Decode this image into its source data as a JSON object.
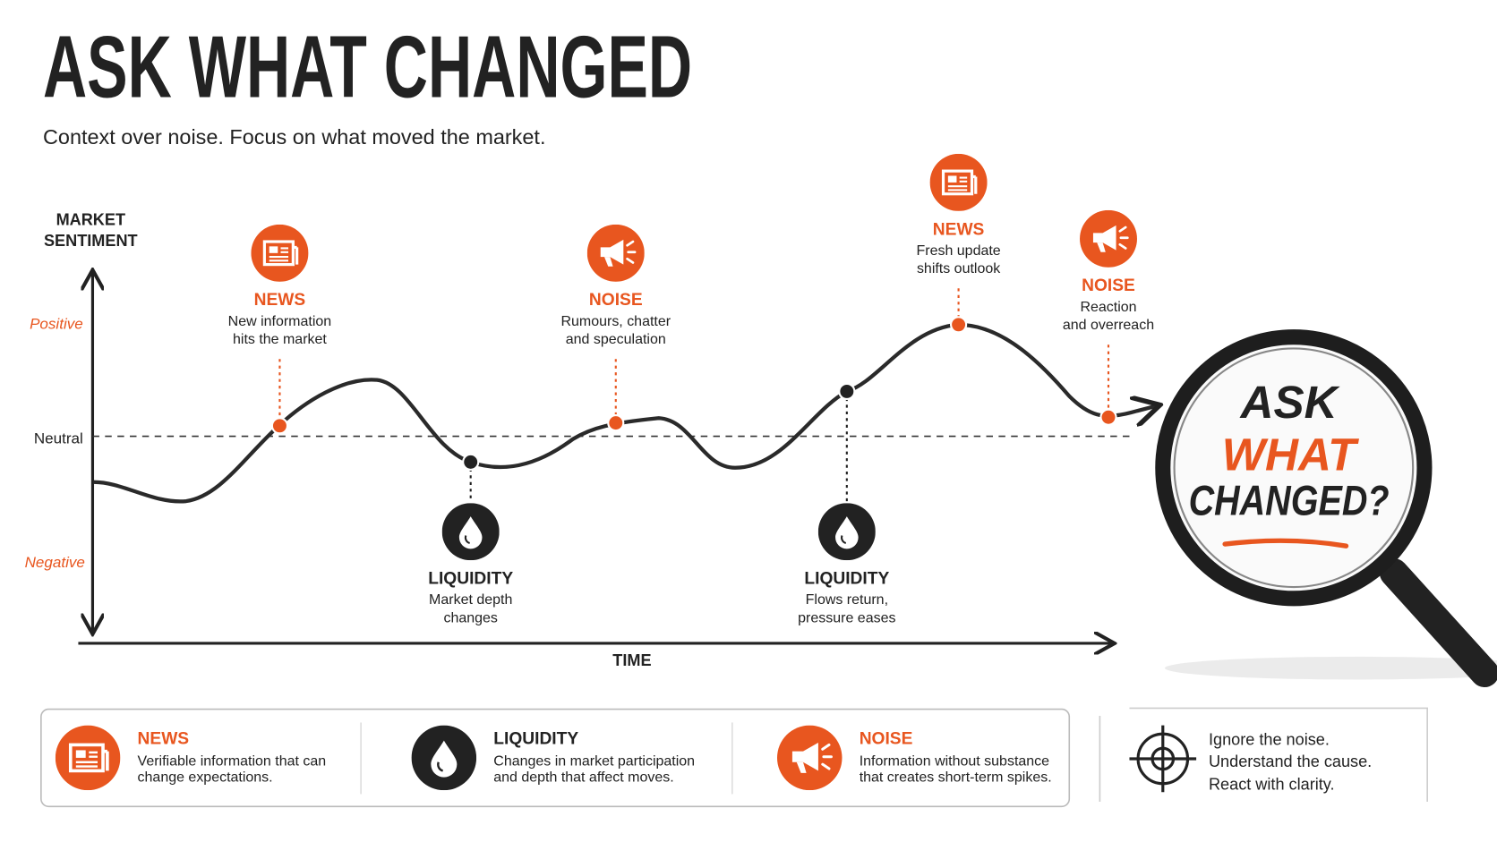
{
  "header": {
    "title": "ASK WHAT CHANGED",
    "subtitle": "Context over noise. Focus on what moved the market."
  },
  "axes": {
    "y_label": [
      "MARKET",
      "SENTIMENT"
    ],
    "levels": [
      "Positive",
      "Neutral",
      "Negative"
    ],
    "x_label": "TIME"
  },
  "events": [
    {
      "type": "NEWS",
      "lines": [
        "New information",
        "hits the market"
      ]
    },
    {
      "type": "LIQUIDITY",
      "lines": [
        "Market depth",
        "changes"
      ]
    },
    {
      "type": "NOISE",
      "lines": [
        "Rumours, chatter",
        "and speculation"
      ]
    },
    {
      "type": "LIQUIDITY",
      "lines": [
        "Flows return,",
        "pressure eases"
      ]
    },
    {
      "type": "NEWS",
      "lines": [
        "Fresh update",
        "shifts outlook"
      ]
    },
    {
      "type": "NOISE",
      "lines": [
        "Reaction",
        "and overreach"
      ]
    }
  ],
  "magnifier": [
    "ASK",
    "WHAT",
    "CHANGED?"
  ],
  "legend": [
    {
      "title": "NEWS",
      "lines": [
        "Verifiable information that can",
        "change expectations."
      ]
    },
    {
      "title": "LIQUIDITY",
      "lines": [
        "Changes in market participation",
        "and depth that affect moves."
      ]
    },
    {
      "title": "NOISE",
      "lines": [
        "Information without substance",
        "that creates short-term spikes."
      ]
    }
  ],
  "takeaway": [
    "Ignore the noise.",
    "Understand the cause.",
    "React with clarity."
  ]
}
